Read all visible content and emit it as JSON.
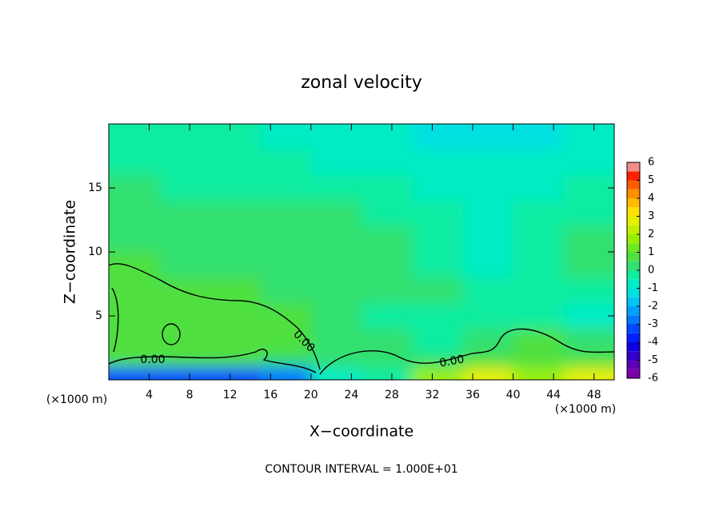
{
  "chart_data": {
    "type": "contour",
    "title": "zonal velocity",
    "xlabel": "X−coordinate",
    "ylabel": "Z−coordinate",
    "x_units": "(×1000 m)",
    "y_units": "(×1000 m)",
    "footer": "CONTOUR INTERVAL = 1.000E+01",
    "contour_labels": [
      "0.00",
      "0.00",
      "0.00"
    ],
    "xlim": [
      0,
      50
    ],
    "xticks": [
      4,
      8,
      12,
      16,
      20,
      24,
      28,
      32,
      36,
      40,
      44,
      48
    ],
    "ylim": [
      0,
      20
    ],
    "yticks": [
      5,
      10,
      15
    ],
    "x_edges": [
      0,
      5,
      10,
      15,
      20,
      25,
      30,
      35,
      40,
      45,
      50
    ],
    "z_edges": [
      0,
      1,
      2,
      4,
      6,
      8,
      10,
      12,
      14,
      16,
      18,
      20
    ],
    "z": [
      [
        -3.5,
        -3.5,
        -3.5,
        -3,
        -1,
        -0.5,
        1.5,
        2.5,
        1.5,
        2.5
      ],
      [
        0.5,
        0.5,
        0.5,
        0.3,
        0.3,
        0.2,
        0.3,
        0.8,
        0.9,
        0.5
      ],
      [
        0.8,
        0.9,
        0.6,
        0.5,
        0.2,
        0,
        -0.1,
        0.3,
        0.6,
        0
      ],
      [
        0.9,
        0.8,
        0.6,
        0.5,
        0.2,
        -0.2,
        -0.2,
        -0.1,
        -0.3,
        -0.8
      ],
      [
        0.8,
        0.6,
        0.5,
        0.4,
        0.3,
        0.2,
        0.1,
        -0.2,
        -0.5,
        -0.3
      ],
      [
        0.5,
        0.4,
        0.4,
        0.4,
        0.3,
        0.3,
        -0.2,
        -0.6,
        -0.3,
        0
      ],
      [
        0.3,
        0.2,
        0.2,
        0.3,
        0.3,
        0,
        -0.5,
        -0.8,
        -0.5,
        0
      ],
      [
        0.2,
        0.1,
        0,
        0.1,
        0.1,
        -0.2,
        -0.5,
        -0.6,
        -0.5,
        -0.3
      ],
      [
        0,
        -0.1,
        -0.2,
        -0.3,
        -0.3,
        -0.5,
        -0.8,
        -0.8,
        -0.6,
        -0.5
      ],
      [
        -0.2,
        -0.3,
        -0.4,
        -0.5,
        -0.6,
        -0.8,
        -1,
        -1,
        -0.9,
        -0.8
      ],
      [
        -0.2,
        -0.3,
        -0.4,
        -0.6,
        -0.8,
        -1,
        -1.2,
        -1.2,
        -1.1,
        -1
      ]
    ],
    "levels": [
      -6,
      -5.5,
      -5,
      -4.5,
      -4,
      -3.5,
      -3,
      -2.5,
      -2,
      -1.5,
      -1,
      -0.5,
      0,
      0.5,
      1,
      1.5,
      2,
      2.5,
      3,
      3.5,
      4,
      4.5,
      5,
      5.5,
      6
    ],
    "colors": [
      "#7a00a8",
      "#5c00b8",
      "#3000c8",
      "#1000e0",
      "#0020ff",
      "#0048ff",
      "#0078ff",
      "#00a0ff",
      "#00c4f4",
      "#00e0e0",
      "#00ecc4",
      "#10eca0",
      "#30e070",
      "#50e040",
      "#70e820",
      "#98f000",
      "#c0f000",
      "#e4f000",
      "#ffe000",
      "#ffbc00",
      "#ff9000",
      "#ff5c00",
      "#ff2000",
      "#f08c8c"
    ],
    "cbar_ticks": [
      -6,
      -5,
      -4,
      -3,
      -2,
      -1,
      0,
      1,
      2,
      3,
      4,
      5,
      6
    ]
  }
}
